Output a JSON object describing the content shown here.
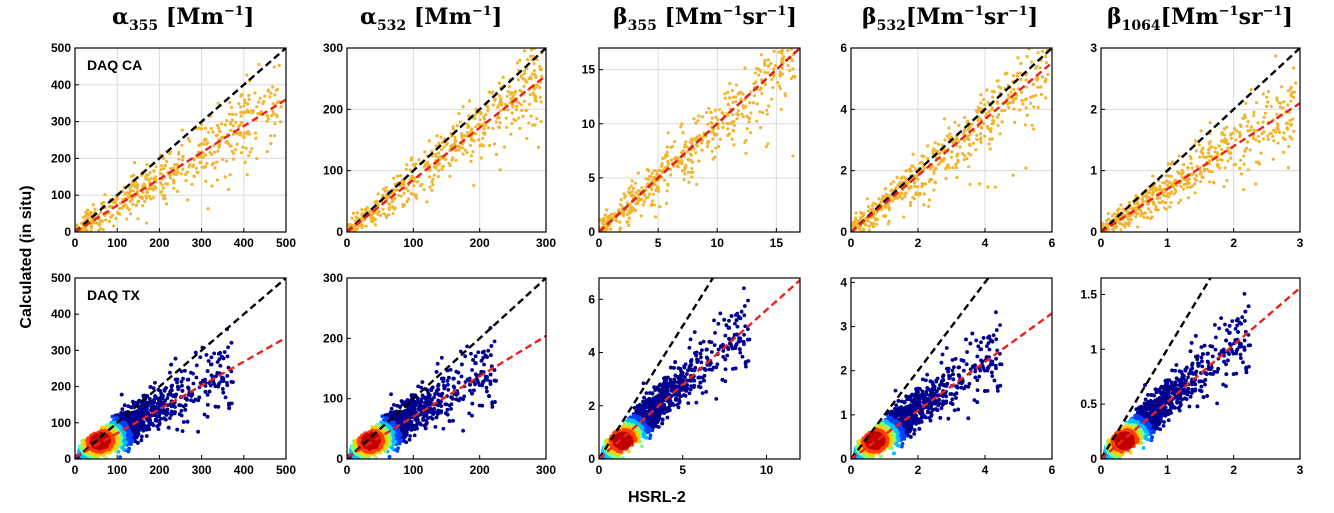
{
  "labels": {
    "y_axis": "Calculated (in situ)",
    "x_axis": "HSRL-2",
    "row_ca": "DAQ CA",
    "row_tx": "DAQ TX"
  },
  "columns": [
    {
      "symbol": "α",
      "sub": "355",
      "unit_open": "[Mm",
      "unit_sup": "−1",
      "unit_rest": "",
      "unit_sup2": "",
      "unit_close": "]"
    },
    {
      "symbol": "α",
      "sub": "532",
      "unit_open": "[Mm",
      "unit_sup": "−1",
      "unit_rest": "",
      "unit_sup2": "",
      "unit_close": "]"
    },
    {
      "symbol": "β",
      "sub": "355",
      "unit_open": "[Mm",
      "unit_sup": "−1",
      "unit_rest": "sr",
      "unit_sup2": "−1",
      "unit_close": "]"
    },
    {
      "symbol": "β",
      "sub": "532",
      "unit_open": "[Mm",
      "unit_sup": "−1",
      "unit_rest": "sr",
      "unit_sup2": "−1",
      "unit_close": "]"
    },
    {
      "symbol": "β",
      "sub": "1064",
      "unit_open": "[Mm",
      "unit_sup": "−1",
      "unit_rest": "sr",
      "unit_sup2": "−1",
      "unit_close": "]"
    }
  ],
  "colors": {
    "scatter_ca": "#f2b530",
    "one_to_one": "#000000",
    "fit": "#e8231f",
    "density": [
      "#00008f",
      "#0040ff",
      "#00c0ff",
      "#80ff80",
      "#ffd000",
      "#ff4000",
      "#c00000"
    ]
  },
  "chart_data": [
    {
      "type": "scatter",
      "row": "DAQ CA",
      "xlim": [
        0,
        500
      ],
      "ylim": [
        0,
        500
      ],
      "xticks": [
        0,
        100,
        200,
        300,
        400,
        500
      ],
      "yticks": [
        0,
        100,
        200,
        300,
        400,
        500
      ],
      "one_to_one_slope": 1,
      "fit_slope": 0.72,
      "fit_intercept": 0,
      "grid": true
    },
    {
      "type": "scatter",
      "row": "DAQ CA",
      "xlim": [
        0,
        300
      ],
      "ylim": [
        0,
        300
      ],
      "xticks": [
        0,
        100,
        200,
        300
      ],
      "yticks": [
        0,
        100,
        200,
        300
      ],
      "one_to_one_slope": 1,
      "fit_slope": 0.85,
      "fit_intercept": 0,
      "grid": true
    },
    {
      "type": "scatter",
      "row": "DAQ CA",
      "xlim": [
        0,
        17
      ],
      "ylim": [
        0,
        17
      ],
      "xticks": [
        0,
        5,
        10,
        15
      ],
      "yticks": [
        0,
        5,
        10,
        15
      ],
      "one_to_one_slope": 1,
      "fit_slope": 1.0,
      "fit_intercept": 0,
      "grid": true
    },
    {
      "type": "scatter",
      "row": "DAQ CA",
      "xlim": [
        0,
        6
      ],
      "ylim": [
        0,
        6
      ],
      "xticks": [
        0,
        2,
        4,
        6
      ],
      "yticks": [
        0,
        2,
        4,
        6
      ],
      "one_to_one_slope": 1,
      "fit_slope": 0.92,
      "fit_intercept": 0,
      "grid": true
    },
    {
      "type": "scatter",
      "row": "DAQ CA",
      "xlim": [
        0,
        3
      ],
      "ylim": [
        0,
        3
      ],
      "xticks": [
        0,
        1,
        2,
        3
      ],
      "yticks": [
        0,
        1,
        2,
        3
      ],
      "one_to_one_slope": 1,
      "fit_slope": 0.7,
      "fit_intercept": 0,
      "grid": true
    },
    {
      "type": "scatter",
      "row": "DAQ TX",
      "xlim": [
        0,
        500
      ],
      "ylim": [
        0,
        500
      ],
      "xticks": [
        0,
        100,
        200,
        300,
        400,
        500
      ],
      "yticks": [
        0,
        100,
        200,
        300,
        400,
        500
      ],
      "one_to_one_slope": 1,
      "fit_slope": 0.66,
      "fit_intercept": 5,
      "grid": false
    },
    {
      "type": "scatter",
      "row": "DAQ TX",
      "xlim": [
        0,
        300
      ],
      "ylim": [
        0,
        300
      ],
      "xticks": [
        0,
        100,
        200,
        300
      ],
      "yticks": [
        0,
        100,
        200,
        300
      ],
      "one_to_one_slope": 1,
      "fit_slope": 0.67,
      "fit_intercept": 3,
      "grid": false
    },
    {
      "type": "scatter",
      "row": "DAQ TX",
      "xlim": [
        0,
        12
      ],
      "ylim": [
        0,
        6.8
      ],
      "xticks": [
        0,
        5,
        10
      ],
      "yticks": [
        0,
        2,
        4,
        6
      ],
      "one_to_one_slope": 1,
      "fit_slope": 0.56,
      "fit_intercept": 0,
      "grid": false
    },
    {
      "type": "scatter",
      "row": "DAQ TX",
      "xlim": [
        0,
        6
      ],
      "ylim": [
        0,
        4.1
      ],
      "xticks": [
        0,
        2,
        4,
        6
      ],
      "yticks": [
        0,
        1,
        2,
        3,
        4
      ],
      "one_to_one_slope": 1,
      "fit_slope": 0.55,
      "fit_intercept": 0,
      "grid": false
    },
    {
      "type": "scatter",
      "row": "DAQ TX",
      "xlim": [
        0,
        3
      ],
      "ylim": [
        0,
        1.65
      ],
      "xticks": [
        0,
        1,
        2,
        3
      ],
      "yticks": [
        0,
        0.5,
        1,
        1.5
      ],
      "one_to_one_slope": 1,
      "fit_slope": 0.52,
      "fit_intercept": 0,
      "grid": false
    }
  ]
}
